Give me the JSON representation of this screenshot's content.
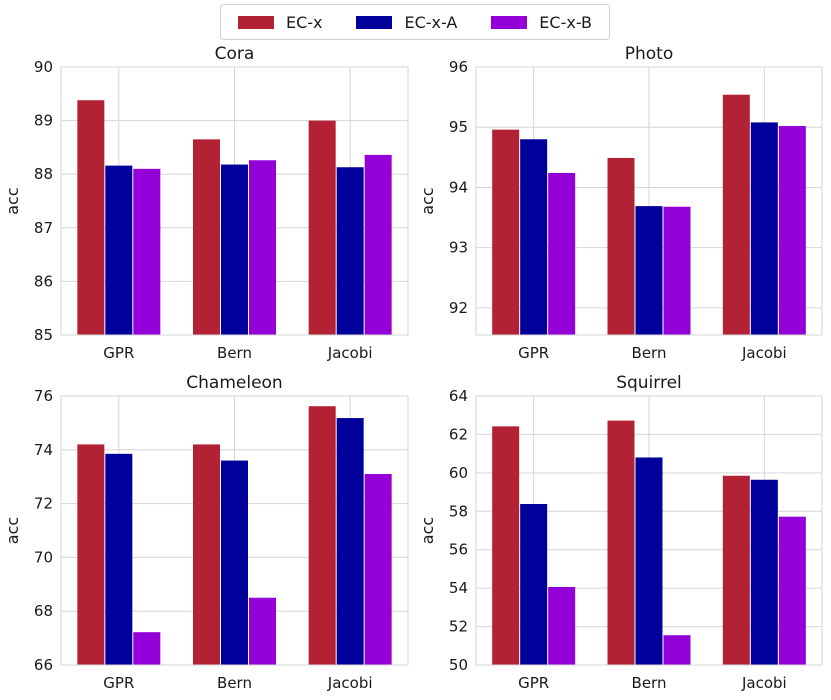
{
  "legend": [
    {
      "name": "EC-x",
      "color": "#b22234"
    },
    {
      "name": "EC-x-A",
      "color": "#00009b"
    },
    {
      "name": "EC-x-B",
      "color": "#9400d8"
    }
  ],
  "chart_data": [
    {
      "type": "bar",
      "title": "Cora",
      "ylabel": "acc",
      "categories": [
        "GPR",
        "Bern",
        "Jacobi"
      ],
      "ylim": [
        85,
        90
      ],
      "yticks": [
        85,
        86,
        87,
        88,
        89,
        90
      ],
      "series": [
        {
          "name": "EC-x",
          "values": [
            89.38,
            88.65,
            89.0
          ]
        },
        {
          "name": "EC-x-A",
          "values": [
            88.16,
            88.18,
            88.13
          ]
        },
        {
          "name": "EC-x-B",
          "values": [
            88.1,
            88.26,
            88.36
          ]
        }
      ]
    },
    {
      "type": "bar",
      "title": "Photo",
      "ylabel": "acc",
      "categories": [
        "GPR",
        "Bern",
        "Jacobi"
      ],
      "ylim": [
        91.55,
        96
      ],
      "yticks": [
        92,
        93,
        94,
        95,
        96
      ],
      "series": [
        {
          "name": "EC-x",
          "values": [
            94.96,
            94.49,
            95.54
          ]
        },
        {
          "name": "EC-x-A",
          "values": [
            94.8,
            93.69,
            95.08
          ]
        },
        {
          "name": "EC-x-B",
          "values": [
            94.24,
            93.68,
            95.02
          ]
        }
      ]
    },
    {
      "type": "bar",
      "title": "Chameleon",
      "ylabel": "acc",
      "categories": [
        "GPR",
        "Bern",
        "Jacobi"
      ],
      "ylim": [
        66,
        76
      ],
      "yticks": [
        66,
        68,
        70,
        72,
        74,
        76
      ],
      "series": [
        {
          "name": "EC-x",
          "values": [
            74.2,
            74.2,
            75.62
          ]
        },
        {
          "name": "EC-x-A",
          "values": [
            73.85,
            73.6,
            75.18
          ]
        },
        {
          "name": "EC-x-B",
          "values": [
            67.22,
            68.5,
            73.1
          ]
        }
      ]
    },
    {
      "type": "bar",
      "title": "Squirrel",
      "ylabel": "acc",
      "categories": [
        "GPR",
        "Bern",
        "Jacobi"
      ],
      "ylim": [
        50,
        64
      ],
      "yticks": [
        50,
        52,
        54,
        56,
        58,
        60,
        62,
        64
      ],
      "series": [
        {
          "name": "EC-x",
          "values": [
            62.42,
            62.72,
            59.85
          ]
        },
        {
          "name": "EC-x-A",
          "values": [
            58.38,
            60.8,
            59.64
          ]
        },
        {
          "name": "EC-x-B",
          "values": [
            54.06,
            51.55,
            57.72
          ]
        }
      ]
    }
  ]
}
